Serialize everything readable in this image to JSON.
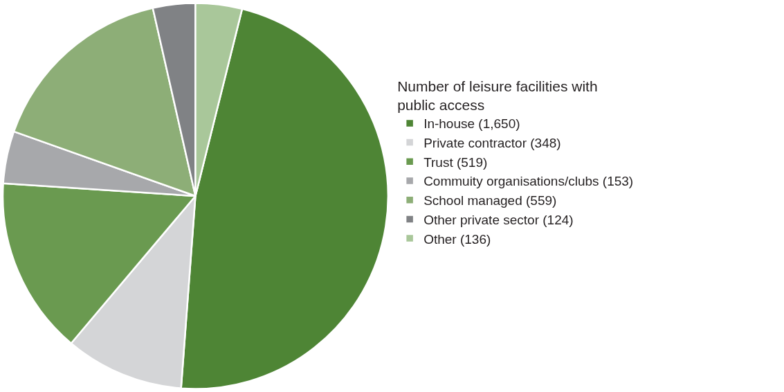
{
  "chart_data": {
    "type": "pie",
    "legend_title": "Number of leisure facilities with public access",
    "categories": [
      "In-house (1,650)",
      "Private contractor (348)",
      "Trust (519)",
      "Commuity organisations/clubs (153)",
      "School managed (559)",
      "Other private sector (124)",
      "Other (136)"
    ],
    "values": [
      1650,
      348,
      519,
      153,
      559,
      124,
      136
    ],
    "colors": [
      "#4e8535",
      "#d4d5d7",
      "#6a9a50",
      "#a7a8ab",
      "#8dae77",
      "#808285",
      "#a9c79a"
    ],
    "legend": "right"
  }
}
